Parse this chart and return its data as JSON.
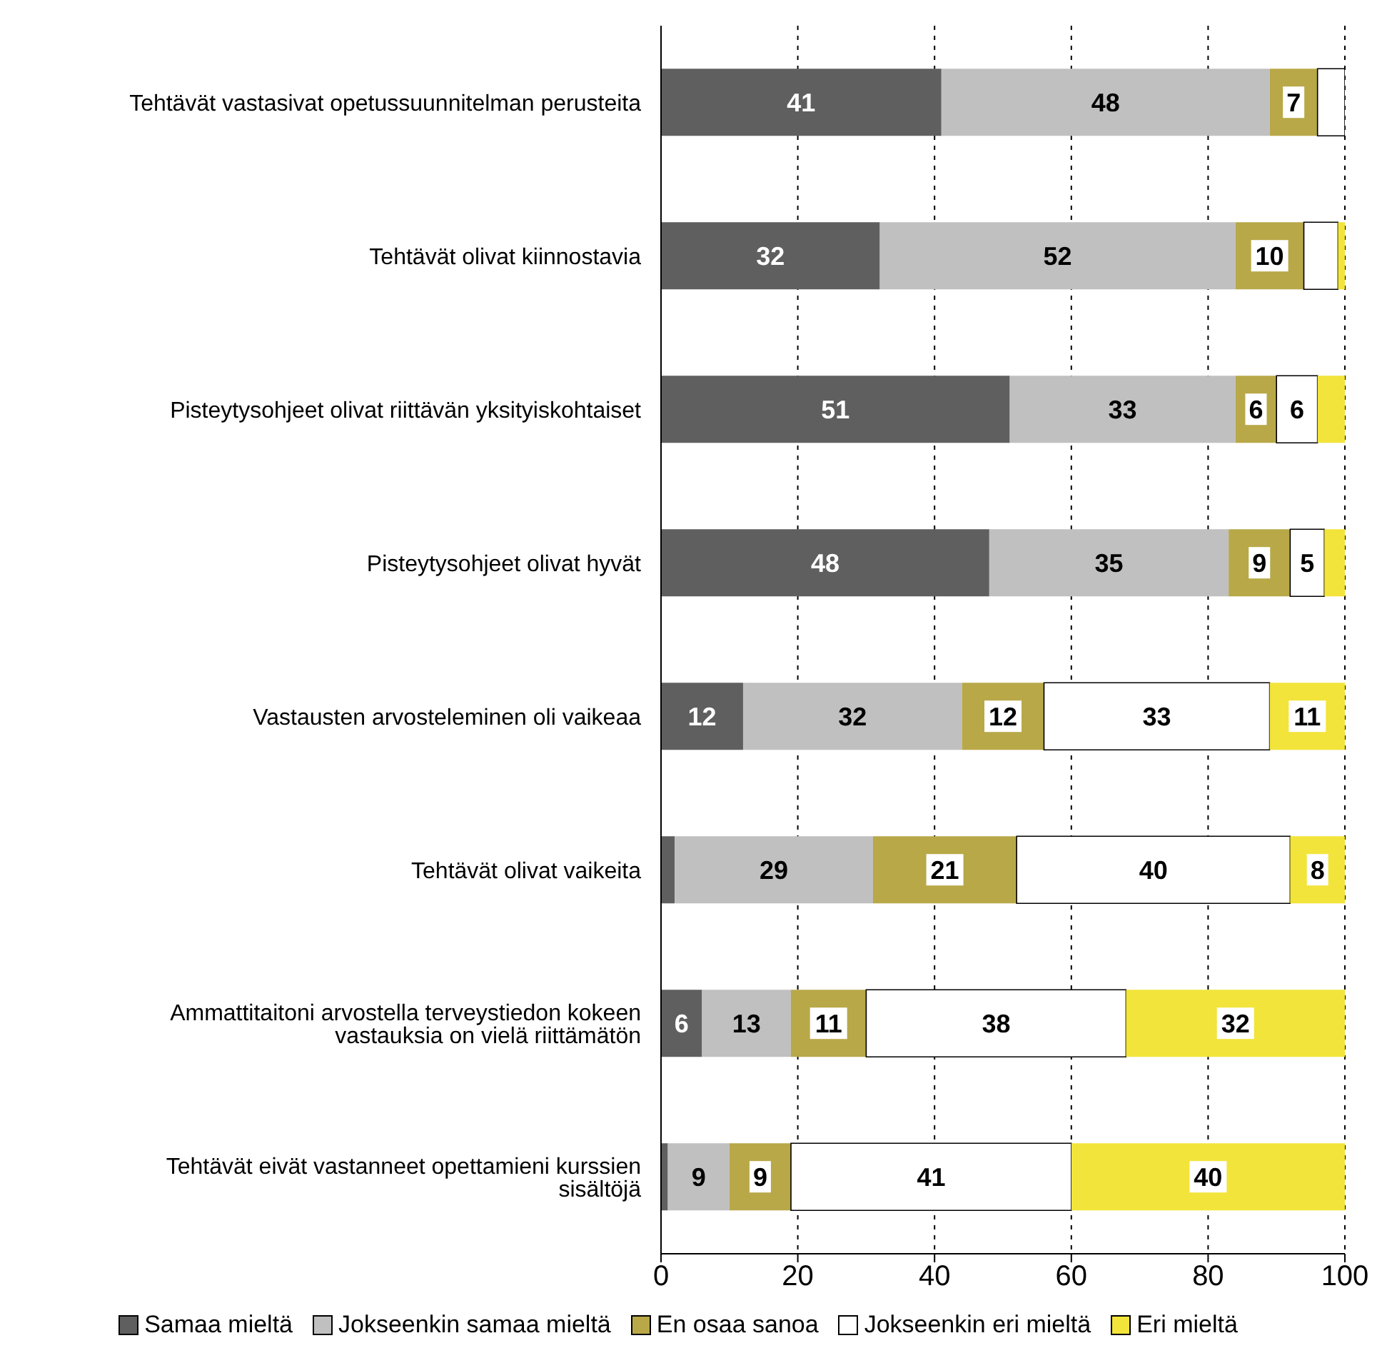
{
  "chart_data": {
    "type": "bar",
    "orientation": "horizontal",
    "stacked": true,
    "categories": [
      "Tehtävät vastasivat opetussuunnitelman perusteita",
      "Tehtävät olivat kiinnostavia",
      "Pisteytysohjeet olivat riittävän yksityiskohtaiset",
      "Pisteytysohjeet olivat hyvät",
      "Vastausten arvosteleminen oli vaikeaa",
      "Tehtävät olivat vaikeita",
      "Ammattitaitoni arvostella terveystiedon kokeen vastauksia on vielä riittämätön",
      "Tehtävät eivät vastanneet opettamieni kurssien sisältöjä"
    ],
    "series": [
      {
        "name": "Samaa mieltä",
        "color": "#5f5f5f",
        "values": [
          41,
          32,
          51,
          48,
          12,
          2,
          6,
          1
        ],
        "value_labels": [
          "41",
          "32",
          "51",
          "48",
          "12",
          null,
          "6",
          null
        ]
      },
      {
        "name": "Jokseenkin samaa mieltä",
        "color": "#c0c0c0",
        "values": [
          48,
          52,
          33,
          35,
          32,
          29,
          13,
          9
        ],
        "value_labels": [
          "48",
          "52",
          "33",
          "35",
          "32",
          "29",
          "13",
          "9"
        ]
      },
      {
        "name": "En osaa sanoa",
        "color": "#b8a848",
        "values": [
          7,
          10,
          6,
          9,
          12,
          21,
          11,
          9
        ],
        "value_labels": [
          "7",
          "10",
          "6",
          "9",
          "12",
          "21",
          "11",
          "9"
        ]
      },
      {
        "name": "Jokseenkin eri mieltä",
        "color": "#ffffff",
        "values": [
          4,
          5,
          6,
          5,
          33,
          40,
          38,
          41
        ],
        "value_labels": [
          null,
          null,
          "6",
          "5",
          "33",
          "40",
          "38",
          "41"
        ]
      },
      {
        "name": "Eri mieltä",
        "color": "#f2e43a",
        "values": [
          0,
          1,
          4,
          3,
          11,
          8,
          32,
          40
        ],
        "value_labels": [
          null,
          null,
          null,
          null,
          "11",
          "8",
          "32",
          "40"
        ]
      }
    ],
    "xlim": [
      0,
      100
    ],
    "xticks": [
      0,
      20,
      40,
      60,
      80,
      100
    ],
    "grid": "x",
    "legend": "bottom"
  }
}
